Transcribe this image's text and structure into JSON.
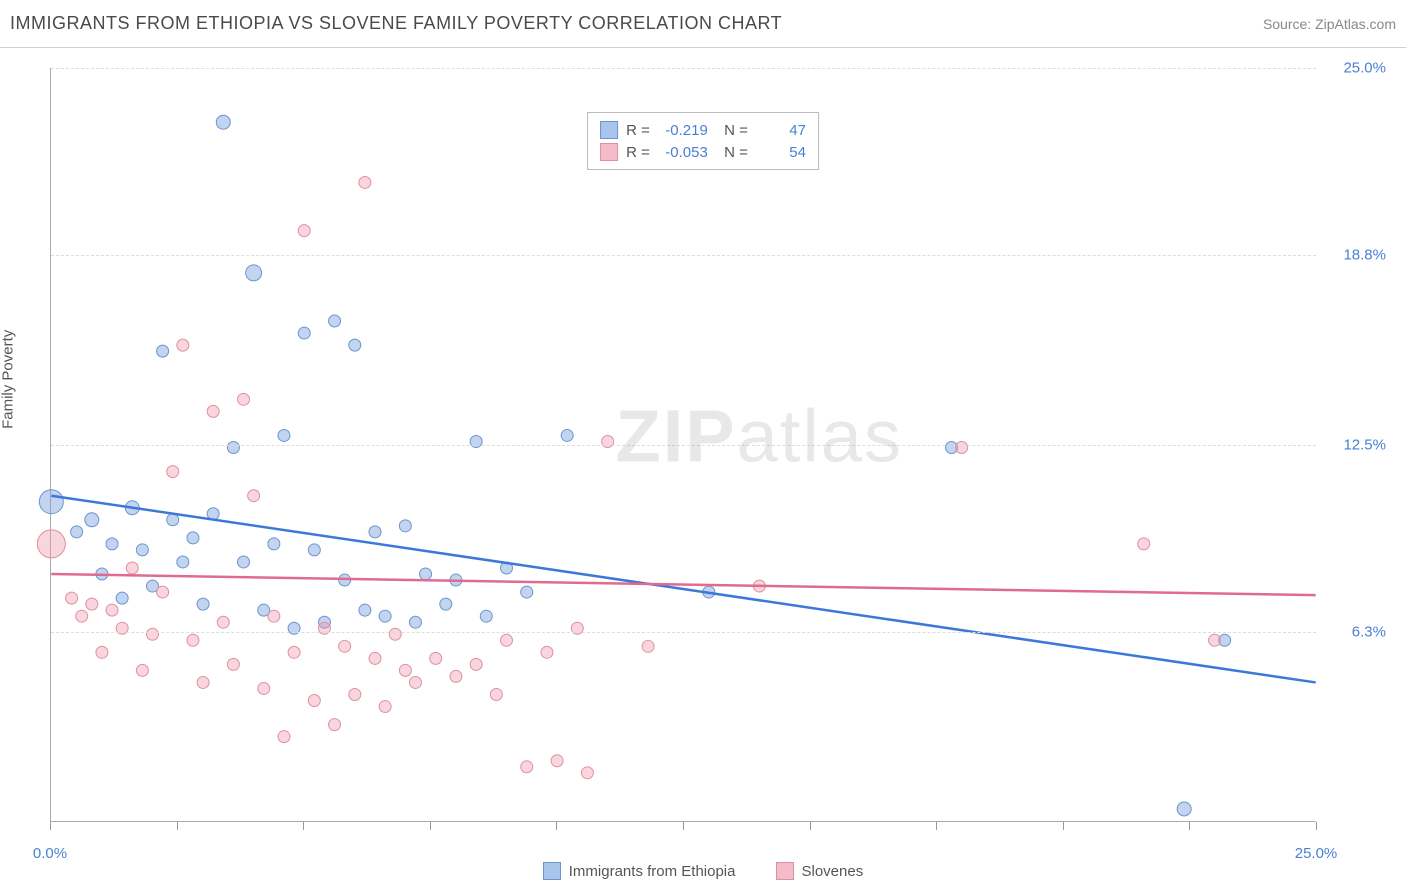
{
  "header": {
    "title": "IMMIGRANTS FROM ETHIOPIA VS SLOVENE FAMILY POVERTY CORRELATION CHART",
    "source": "Source: ZipAtlas.com"
  },
  "yAxis": {
    "label": "Family Poverty",
    "min": 0,
    "max": 25,
    "ticks": [
      {
        "value": 25.0,
        "label": "25.0%"
      },
      {
        "value": 18.8,
        "label": "18.8%"
      },
      {
        "value": 12.5,
        "label": "12.5%"
      },
      {
        "value": 6.3,
        "label": "6.3%"
      }
    ]
  },
  "xAxis": {
    "min": 0,
    "max": 25,
    "ticks": [
      0,
      2.5,
      5.0,
      7.5,
      10.0,
      12.5,
      15.0,
      17.5,
      20.0,
      22.5,
      25.0
    ],
    "leftLabel": "0.0%",
    "rightLabel": "25.0%"
  },
  "watermarkA": "ZIP",
  "watermarkB": "atlas",
  "series": [
    {
      "id": "ethiopia",
      "name": "Immigrants from Ethiopia",
      "fillColor": "rgba(120,160,220,0.45)",
      "strokeColor": "#6b95cf",
      "lineColor": "#3b78d8",
      "swatchFill": "#a9c5ec",
      "swatchStroke": "#6b95cf",
      "R": "-0.219",
      "N": "47",
      "regression": {
        "y_at_x0": 10.8,
        "y_at_xmax": 4.6
      },
      "points": [
        {
          "x": 0.0,
          "y": 10.6,
          "r": 12
        },
        {
          "x": 0.5,
          "y": 9.6,
          "r": 6
        },
        {
          "x": 0.8,
          "y": 10.0,
          "r": 7
        },
        {
          "x": 1.0,
          "y": 8.2,
          "r": 6
        },
        {
          "x": 1.2,
          "y": 9.2,
          "r": 6
        },
        {
          "x": 1.4,
          "y": 7.4,
          "r": 6
        },
        {
          "x": 1.6,
          "y": 10.4,
          "r": 7
        },
        {
          "x": 1.8,
          "y": 9.0,
          "r": 6
        },
        {
          "x": 2.0,
          "y": 7.8,
          "r": 6
        },
        {
          "x": 2.2,
          "y": 15.6,
          "r": 6
        },
        {
          "x": 2.4,
          "y": 10.0,
          "r": 6
        },
        {
          "x": 2.6,
          "y": 8.6,
          "r": 6
        },
        {
          "x": 2.8,
          "y": 9.4,
          "r": 6
        },
        {
          "x": 3.0,
          "y": 7.2,
          "r": 6
        },
        {
          "x": 3.2,
          "y": 10.2,
          "r": 6
        },
        {
          "x": 3.4,
          "y": 23.2,
          "r": 7
        },
        {
          "x": 3.6,
          "y": 12.4,
          "r": 6
        },
        {
          "x": 3.8,
          "y": 8.6,
          "r": 6
        },
        {
          "x": 4.0,
          "y": 18.2,
          "r": 8
        },
        {
          "x": 4.2,
          "y": 7.0,
          "r": 6
        },
        {
          "x": 4.4,
          "y": 9.2,
          "r": 6
        },
        {
          "x": 4.6,
          "y": 12.8,
          "r": 6
        },
        {
          "x": 4.8,
          "y": 6.4,
          "r": 6
        },
        {
          "x": 5.0,
          "y": 16.2,
          "r": 6
        },
        {
          "x": 5.2,
          "y": 9.0,
          "r": 6
        },
        {
          "x": 5.4,
          "y": 6.6,
          "r": 6
        },
        {
          "x": 5.6,
          "y": 16.6,
          "r": 6
        },
        {
          "x": 5.8,
          "y": 8.0,
          "r": 6
        },
        {
          "x": 6.0,
          "y": 15.8,
          "r": 6
        },
        {
          "x": 6.2,
          "y": 7.0,
          "r": 6
        },
        {
          "x": 6.4,
          "y": 9.6,
          "r": 6
        },
        {
          "x": 6.6,
          "y": 6.8,
          "r": 6
        },
        {
          "x": 7.0,
          "y": 9.8,
          "r": 6
        },
        {
          "x": 7.2,
          "y": 6.6,
          "r": 6
        },
        {
          "x": 7.4,
          "y": 8.2,
          "r": 6
        },
        {
          "x": 7.8,
          "y": 7.2,
          "r": 6
        },
        {
          "x": 8.0,
          "y": 8.0,
          "r": 6
        },
        {
          "x": 8.4,
          "y": 12.6,
          "r": 6
        },
        {
          "x": 8.6,
          "y": 6.8,
          "r": 6
        },
        {
          "x": 9.0,
          "y": 8.4,
          "r": 6
        },
        {
          "x": 9.4,
          "y": 7.6,
          "r": 6
        },
        {
          "x": 10.2,
          "y": 12.8,
          "r": 6
        },
        {
          "x": 13.0,
          "y": 7.6,
          "r": 6
        },
        {
          "x": 17.8,
          "y": 12.4,
          "r": 6
        },
        {
          "x": 22.4,
          "y": 0.4,
          "r": 7
        },
        {
          "x": 23.2,
          "y": 6.0,
          "r": 6
        }
      ]
    },
    {
      "id": "slovenes",
      "name": "Slovenes",
      "fillColor": "rgba(240,150,170,0.40)",
      "strokeColor": "#df8fa4",
      "lineColor": "#e06a90",
      "swatchFill": "#f4bccb",
      "swatchStroke": "#df8fa4",
      "R": "-0.053",
      "N": "54",
      "regression": {
        "y_at_x0": 8.2,
        "y_at_xmax": 7.5
      },
      "points": [
        {
          "x": 0.0,
          "y": 9.2,
          "r": 14
        },
        {
          "x": 0.4,
          "y": 7.4,
          "r": 6
        },
        {
          "x": 0.6,
          "y": 6.8,
          "r": 6
        },
        {
          "x": 0.8,
          "y": 7.2,
          "r": 6
        },
        {
          "x": 1.0,
          "y": 5.6,
          "r": 6
        },
        {
          "x": 1.2,
          "y": 7.0,
          "r": 6
        },
        {
          "x": 1.4,
          "y": 6.4,
          "r": 6
        },
        {
          "x": 1.6,
          "y": 8.4,
          "r": 6
        },
        {
          "x": 1.8,
          "y": 5.0,
          "r": 6
        },
        {
          "x": 2.0,
          "y": 6.2,
          "r": 6
        },
        {
          "x": 2.2,
          "y": 7.6,
          "r": 6
        },
        {
          "x": 2.4,
          "y": 11.6,
          "r": 6
        },
        {
          "x": 2.6,
          "y": 15.8,
          "r": 6
        },
        {
          "x": 2.8,
          "y": 6.0,
          "r": 6
        },
        {
          "x": 3.0,
          "y": 4.6,
          "r": 6
        },
        {
          "x": 3.2,
          "y": 13.6,
          "r": 6
        },
        {
          "x": 3.4,
          "y": 6.6,
          "r": 6
        },
        {
          "x": 3.6,
          "y": 5.2,
          "r": 6
        },
        {
          "x": 3.8,
          "y": 14.0,
          "r": 6
        },
        {
          "x": 4.0,
          "y": 10.8,
          "r": 6
        },
        {
          "x": 4.2,
          "y": 4.4,
          "r": 6
        },
        {
          "x": 4.4,
          "y": 6.8,
          "r": 6
        },
        {
          "x": 4.6,
          "y": 2.8,
          "r": 6
        },
        {
          "x": 4.8,
          "y": 5.6,
          "r": 6
        },
        {
          "x": 5.0,
          "y": 19.6,
          "r": 6
        },
        {
          "x": 5.2,
          "y": 4.0,
          "r": 6
        },
        {
          "x": 5.4,
          "y": 6.4,
          "r": 6
        },
        {
          "x": 5.6,
          "y": 3.2,
          "r": 6
        },
        {
          "x": 5.8,
          "y": 5.8,
          "r": 6
        },
        {
          "x": 6.0,
          "y": 4.2,
          "r": 6
        },
        {
          "x": 6.2,
          "y": 21.2,
          "r": 6
        },
        {
          "x": 6.4,
          "y": 5.4,
          "r": 6
        },
        {
          "x": 6.6,
          "y": 3.8,
          "r": 6
        },
        {
          "x": 6.8,
          "y": 6.2,
          "r": 6
        },
        {
          "x": 7.0,
          "y": 5.0,
          "r": 6
        },
        {
          "x": 7.2,
          "y": 4.6,
          "r": 6
        },
        {
          "x": 7.6,
          "y": 5.4,
          "r": 6
        },
        {
          "x": 8.0,
          "y": 4.8,
          "r": 6
        },
        {
          "x": 8.4,
          "y": 5.2,
          "r": 6
        },
        {
          "x": 8.8,
          "y": 4.2,
          "r": 6
        },
        {
          "x": 9.0,
          "y": 6.0,
          "r": 6
        },
        {
          "x": 9.4,
          "y": 1.8,
          "r": 6
        },
        {
          "x": 9.8,
          "y": 5.6,
          "r": 6
        },
        {
          "x": 10.0,
          "y": 2.0,
          "r": 6
        },
        {
          "x": 10.4,
          "y": 6.4,
          "r": 6
        },
        {
          "x": 10.6,
          "y": 1.6,
          "r": 6
        },
        {
          "x": 11.0,
          "y": 12.6,
          "r": 6
        },
        {
          "x": 11.8,
          "y": 5.8,
          "r": 6
        },
        {
          "x": 14.0,
          "y": 7.8,
          "r": 6
        },
        {
          "x": 18.0,
          "y": 12.4,
          "r": 6
        },
        {
          "x": 21.6,
          "y": 9.2,
          "r": 6
        },
        {
          "x": 23.0,
          "y": 6.0,
          "r": 6
        }
      ]
    }
  ],
  "legendBottom": [
    {
      "swatchFill": "#a9c5ec",
      "swatchStroke": "#6b95cf",
      "label": "Immigrants from Ethiopia"
    },
    {
      "swatchFill": "#f4bccb",
      "swatchStroke": "#df8fa4",
      "label": "Slovenes"
    }
  ]
}
